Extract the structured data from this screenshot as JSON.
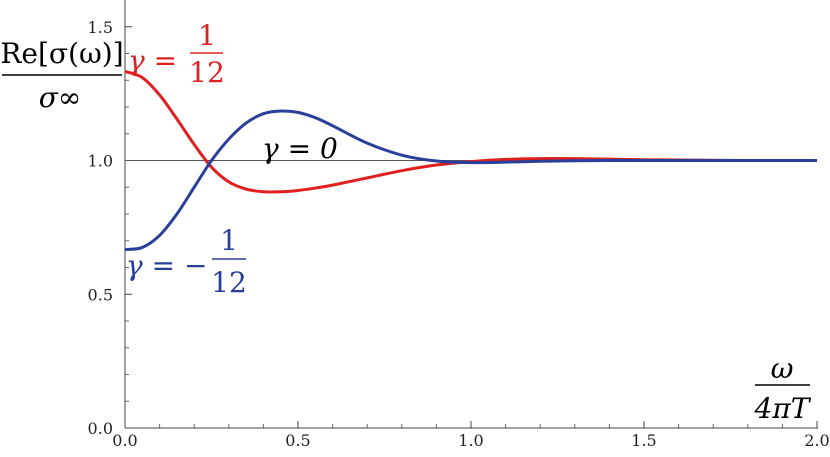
{
  "chart_data": {
    "type": "line",
    "xlim": [
      0.0,
      2.0
    ],
    "ylim": [
      0.0,
      1.6
    ],
    "x_ticks": [
      "0.0",
      "0.5",
      "1.0",
      "1.5",
      "2.0"
    ],
    "y_ticks": [
      "0.0",
      "0.5",
      "1.0",
      "1.5"
    ],
    "ylabel": {
      "numerator": "Re[σ(ω)]",
      "denominator": "σ∞"
    },
    "xlabel": {
      "numerator": "ω",
      "denominator": "4πT"
    },
    "series": [
      {
        "name": "γ = 1/12",
        "label_lhs": "γ =",
        "label_frac_num": "1",
        "label_frac_den": "12",
        "color": "#e02020",
        "x": [
          0.0,
          0.05,
          0.1,
          0.15,
          0.2,
          0.25,
          0.3,
          0.35,
          0.4,
          0.45,
          0.5,
          0.55,
          0.6,
          0.7,
          0.8,
          0.9,
          1.0,
          1.1,
          1.2,
          1.3,
          1.4,
          1.5,
          1.6,
          1.7,
          1.8,
          1.9,
          2.0
        ],
        "y": [
          1.333,
          1.31,
          1.245,
          1.155,
          1.06,
          0.975,
          0.92,
          0.893,
          0.883,
          0.883,
          0.888,
          0.897,
          0.908,
          0.935,
          0.962,
          0.983,
          0.996,
          1.004,
          1.007,
          1.007,
          1.005,
          1.003,
          1.002,
          1.001,
          1.0,
          1.0,
          1.0
        ]
      },
      {
        "name": "γ = −1/12",
        "label_lhs": "γ = −",
        "label_frac_num": "1",
        "label_frac_den": "12",
        "color": "#2a3f9a",
        "x": [
          0.0,
          0.05,
          0.1,
          0.15,
          0.2,
          0.25,
          0.3,
          0.35,
          0.4,
          0.45,
          0.5,
          0.55,
          0.6,
          0.7,
          0.8,
          0.9,
          1.0,
          1.1,
          1.2,
          1.3,
          1.4,
          1.5,
          1.6,
          1.7,
          1.8,
          1.9,
          2.0
        ],
        "y": [
          0.667,
          0.675,
          0.72,
          0.8,
          0.9,
          1.0,
          1.08,
          1.14,
          1.175,
          1.185,
          1.18,
          1.16,
          1.13,
          1.065,
          1.02,
          0.998,
          0.992,
          0.994,
          0.997,
          0.999,
          1.0,
          1.0,
          1.0,
          1.0,
          1.0,
          1.0,
          1.0
        ]
      },
      {
        "name": "γ = 0",
        "label_lhs": "γ = 0",
        "color": "#555555",
        "x": [
          0.0,
          2.0
        ],
        "y": [
          1.0,
          1.0
        ]
      }
    ]
  }
}
